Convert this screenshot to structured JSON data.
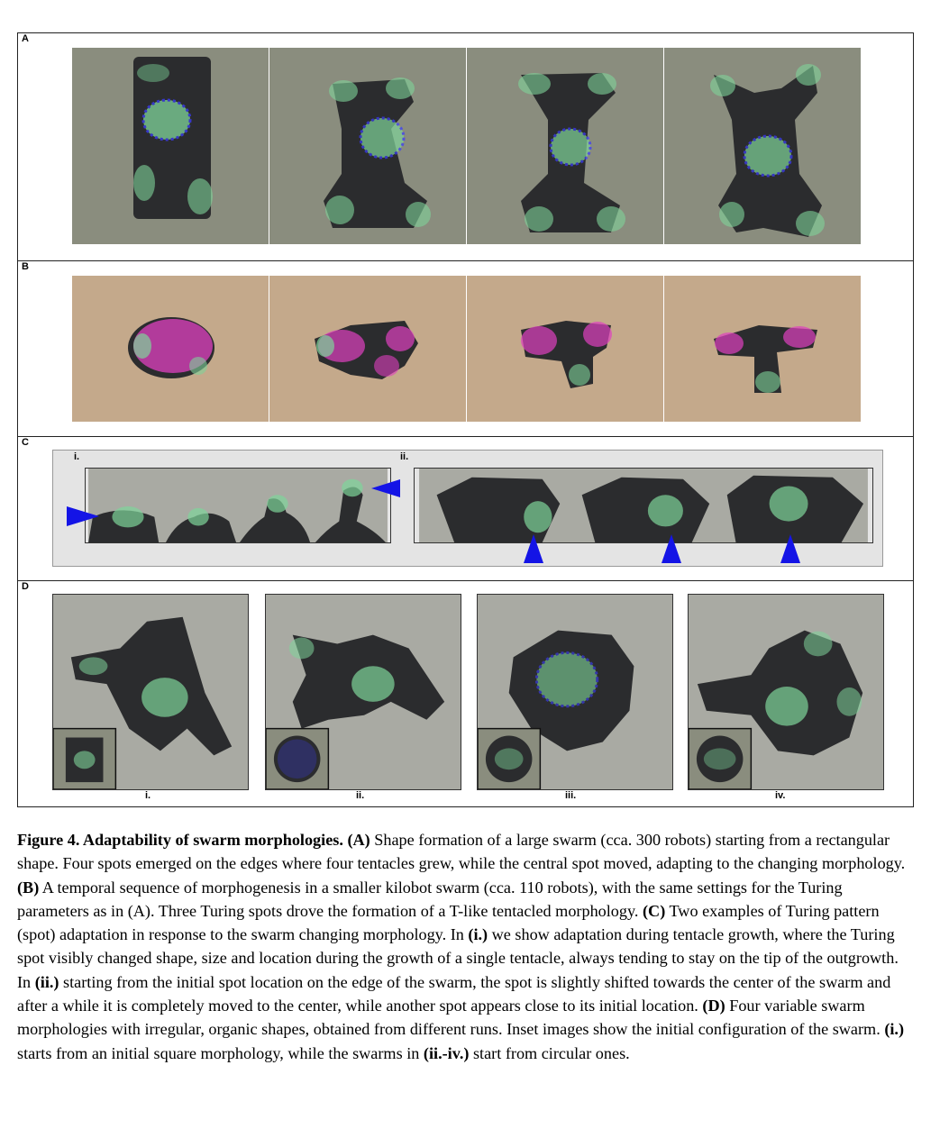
{
  "figure": {
    "panels": {
      "a": {
        "label": "A"
      },
      "b": {
        "label": "B"
      },
      "c": {
        "label": "C",
        "sub_i": "i.",
        "sub_ii": "ii."
      },
      "d": {
        "label": "D",
        "subs": [
          "i.",
          "ii.",
          "iii.",
          "iv."
        ]
      }
    },
    "colors": {
      "panel_a_background": "#8a8d7e",
      "panel_b_background": "#c4a98b",
      "panel_c_background": "#e4e4e4",
      "panel_d_background": "#a9aaa3",
      "robot": "#2b2c2e",
      "spot_green": "#7fd49a",
      "spot_blue": "#3b3bff",
      "spot_magenta": "#e040c0",
      "arrow": "#1414e6"
    }
  },
  "caption": {
    "title": "Figure 4. Adaptability of swarm morphologies.",
    "seg_a_label": "(A)",
    "seg_a_text": " Shape formation of a large swarm (cca. 300 robots) starting from a rectangular shape. Four spots emerged on the edges where four tentacles grew, while the central spot moved, adapting to the changing morphology. ",
    "seg_b_label": "(B)",
    "seg_b_text": " A temporal sequence of morphogenesis in a smaller kilobot swarm (cca. 110 robots), with the same settings for the Turing parameters as in (A). Three Turing spots drove the formation of a T-like tentacled morphology. ",
    "seg_c_label": "(C)",
    "seg_c_text": " Two examples of Turing pattern (spot) adaptation in response to the swarm changing morphology. In ",
    "seg_c_i": "(i.)",
    "seg_c_text2": " we show adaptation during tentacle growth, where the Turing spot visibly changed shape, size and location during the growth of a single tentacle, always tending to stay on the tip of the outgrowth. In ",
    "seg_c_ii": "(ii.)",
    "seg_c_text3": " starting from the initial spot location on the edge of the swarm, the spot is slightly shifted towards the center of the swarm and after a while it is completely moved to the center, while another spot appears close to its initial location. ",
    "seg_d_label": "(D)",
    "seg_d_text": " Four variable swarm morphologies with irregular, organic shapes, obtained from different runs. Inset images show the initial configuration of the swarm. ",
    "seg_d_i": "(i.)",
    "seg_d_text2": " starts from an initial square morphology, while the swarms in ",
    "seg_d_iiiv": "(ii.-iv.)",
    "seg_d_text3": " start from circular ones."
  }
}
